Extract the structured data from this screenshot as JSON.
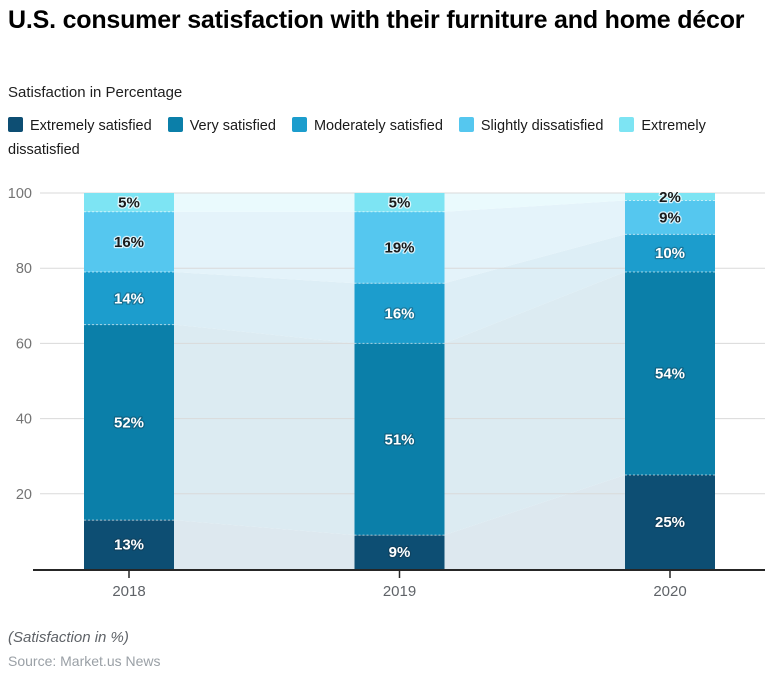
{
  "header": {
    "title": "U.S. consumer satisfaction with their furniture and home décor",
    "subtitle": "Satisfaction in Percentage"
  },
  "chart_data": {
    "type": "bar",
    "stacked": true,
    "title": "U.S. consumer satisfaction with their furniture and home décor",
    "categories": [
      "2018",
      "2019",
      "2020"
    ],
    "series": [
      {
        "name": "Extremely satisfied",
        "values": [
          13,
          9,
          25
        ],
        "color": "#0d4e73",
        "band_color": "#dde8ef",
        "label_color": "#ffffff"
      },
      {
        "name": "Very satisfied",
        "values": [
          52,
          51,
          54
        ],
        "color": "#0b7fa9",
        "band_color": "#dcebf2",
        "label_color": "#ffffff"
      },
      {
        "name": "Moderately satisfied",
        "values": [
          14,
          16,
          10
        ],
        "color": "#1c9dcd",
        "band_color": "#ddeef6",
        "label_color": "#ffffff"
      },
      {
        "name": "Slightly dissatisfied",
        "values": [
          16,
          19,
          9
        ],
        "color": "#55c7ef",
        "band_color": "#e4f3fa",
        "label_color": "#1a1a1a"
      },
      {
        "name": "Extremely dissatisfied",
        "values": [
          5,
          5,
          2
        ],
        "color": "#7de4f3",
        "band_color": "#eafafd",
        "label_color": "#1a1a1a"
      }
    ],
    "value_suffix": "%",
    "xlabel": "",
    "ylabel": "",
    "ylim": [
      0,
      100
    ],
    "yticks": [
      20,
      40,
      60,
      80,
      100
    ],
    "grid": true,
    "gridline_color": "#dadada",
    "axis_line_color": "#262626",
    "y_tick_label_color": "#737373",
    "x_tick_label_color": "#5f6368",
    "legend_position": "top"
  },
  "footer": {
    "note": "(Satisfaction in %)",
    "source": "Source: Market.us News"
  }
}
